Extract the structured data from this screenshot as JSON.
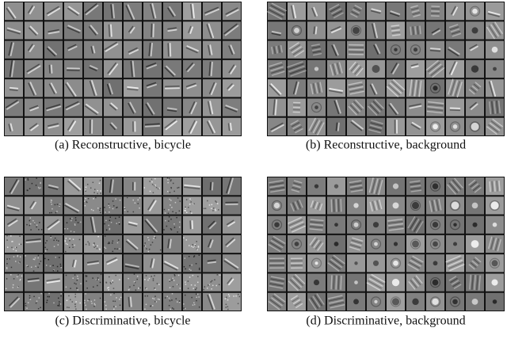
{
  "panels": [
    {
      "caption": "(a) Reconstructive, bicycle"
    },
    {
      "caption": "(b) Reconstructive, background"
    },
    {
      "caption": "(c) Discriminative, bicycle"
    },
    {
      "caption": "(d) Discriminative, background"
    }
  ]
}
